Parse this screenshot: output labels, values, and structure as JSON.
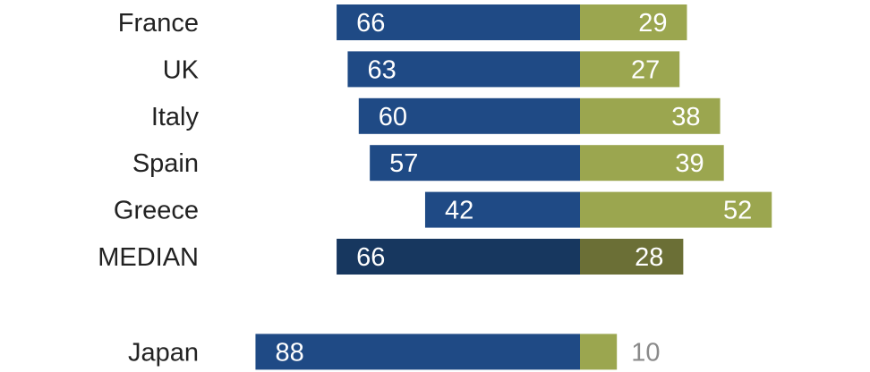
{
  "chart_data": {
    "type": "bar",
    "orientation": "horizontal-diverging",
    "title": "",
    "xlabel": "",
    "ylabel": "",
    "categories": [
      "France",
      "UK",
      "Italy",
      "Spain",
      "Greece",
      "MEDIAN",
      "Japan"
    ],
    "series": [
      {
        "values": [
          66,
          63,
          60,
          57,
          42,
          66,
          88
        ],
        "color": "#1f4a85",
        "direction": "left"
      },
      {
        "values": [
          29,
          27,
          38,
          39,
          52,
          28,
          10
        ],
        "color": "#9ba64f",
        "direction": "right"
      }
    ],
    "highlight": {
      "category": "MEDIAN",
      "colors": [
        "#17375f",
        "#6b6f36"
      ]
    },
    "gap_before": "Japan",
    "grid": false,
    "legend": "none"
  }
}
